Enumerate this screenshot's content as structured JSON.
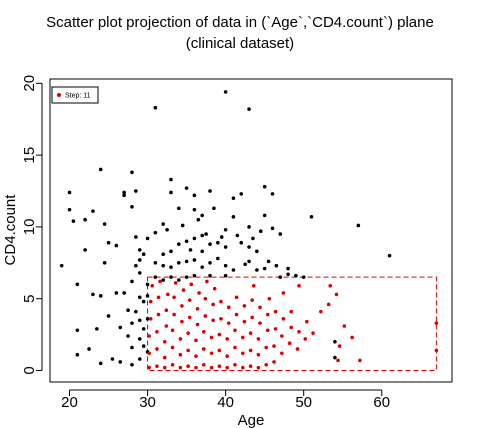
{
  "chart_data": {
    "type": "scatter",
    "title": "Scatter plot projection of data in (`Age`,`CD4.count`) plane",
    "subtitle": "(clinical dataset)",
    "xlabel": "Age",
    "ylabel": "CD4.count",
    "xlim": [
      17.5,
      69
    ],
    "ylim": [
      -0.8,
      20.3
    ],
    "xticks": [
      20,
      30,
      40,
      50,
      60
    ],
    "yticks": [
      0,
      5,
      10,
      15,
      20
    ],
    "legend_position": "top-left",
    "highlight_box": {
      "x": [
        30,
        67
      ],
      "y": [
        0,
        6.5
      ]
    },
    "series": [
      {
        "name": "",
        "color": "#000000",
        "points": [
          [
            19,
            7.3
          ],
          [
            20,
            12.4
          ],
          [
            20,
            11.2
          ],
          [
            20.5,
            10.4
          ],
          [
            21,
            6
          ],
          [
            21,
            2.8
          ],
          [
            21,
            1.1
          ],
          [
            22,
            10.5
          ],
          [
            22,
            8.4
          ],
          [
            22.5,
            1.5
          ],
          [
            23,
            11.1
          ],
          [
            23,
            5.3
          ],
          [
            23.5,
            2.9
          ],
          [
            24,
            14
          ],
          [
            24,
            5.2
          ],
          [
            24,
            0.5
          ],
          [
            24.5,
            7.5
          ],
          [
            24.5,
            10.2
          ],
          [
            25,
            8.9
          ],
          [
            25,
            3.8
          ],
          [
            25.5,
            0.8
          ],
          [
            26,
            8.7
          ],
          [
            26,
            5.4
          ],
          [
            26.5,
            3
          ],
          [
            26.5,
            0.6
          ],
          [
            27,
            12.4
          ],
          [
            27,
            12.2
          ],
          [
            27,
            5.4
          ],
          [
            27.5,
            4.2
          ],
          [
            27.5,
            2.4
          ],
          [
            28,
            13.8
          ],
          [
            28,
            11.4
          ],
          [
            28,
            6.2
          ],
          [
            28,
            3.3
          ],
          [
            28,
            1.6
          ],
          [
            28,
            0.4
          ],
          [
            28.5,
            7.3
          ],
          [
            28.5,
            12.5
          ],
          [
            28.5,
            9.3
          ],
          [
            28.5,
            4.1
          ],
          [
            29,
            8.4
          ],
          [
            29,
            6.8
          ],
          [
            29,
            5.1
          ],
          [
            29,
            3.5
          ],
          [
            29,
            2.2
          ],
          [
            29,
            0.8
          ],
          [
            29,
            7.7
          ],
          [
            29.5,
            8.1
          ],
          [
            29.5,
            4.8
          ],
          [
            29.5,
            2.9
          ],
          [
            29.5,
            1.7
          ],
          [
            30,
            6
          ],
          [
            30,
            5.2
          ],
          [
            30,
            3.6
          ],
          [
            30,
            1.3
          ],
          [
            30,
            9.2
          ],
          [
            31,
            18.3
          ],
          [
            31,
            9.6
          ],
          [
            31,
            7.5
          ],
          [
            31,
            6.5
          ],
          [
            32,
            10.2
          ],
          [
            32,
            8.1
          ],
          [
            32,
            7.3
          ],
          [
            32,
            6.3
          ],
          [
            32.5,
            9.8
          ],
          [
            33,
            13.3
          ],
          [
            33,
            12.4
          ],
          [
            33,
            8.3
          ],
          [
            33,
            7.2
          ],
          [
            33,
            6.5
          ],
          [
            34,
            11.3
          ],
          [
            34,
            8.8
          ],
          [
            34,
            7.5
          ],
          [
            34,
            6.3
          ],
          [
            34.5,
            10.1
          ],
          [
            35,
            12.7
          ],
          [
            35,
            9
          ],
          [
            35,
            7.6
          ],
          [
            35,
            6.5
          ],
          [
            35.5,
            8.4
          ],
          [
            36,
            12.2
          ],
          [
            36,
            11.2
          ],
          [
            36,
            9.2
          ],
          [
            36,
            7.7
          ],
          [
            36,
            6.6
          ],
          [
            36.5,
            10.5
          ],
          [
            37,
            10.8
          ],
          [
            37,
            9.4
          ],
          [
            37,
            8.3
          ],
          [
            37,
            7.2
          ],
          [
            37.5,
            9.5
          ],
          [
            38,
            12.5
          ],
          [
            38,
            8.8
          ],
          [
            38,
            7.5
          ],
          [
            38,
            6.6
          ],
          [
            38.5,
            11.3
          ],
          [
            39,
            8.9
          ],
          [
            39,
            7.8
          ],
          [
            39.5,
            9.3
          ],
          [
            40,
            19.4
          ],
          [
            40,
            9.8
          ],
          [
            40,
            8.6
          ],
          [
            40,
            7.3
          ],
          [
            40,
            6.6
          ],
          [
            41,
            12
          ],
          [
            41,
            10.7
          ],
          [
            41,
            7
          ],
          [
            41.5,
            9.4
          ],
          [
            42,
            12.3
          ],
          [
            42,
            8.9
          ],
          [
            42.5,
            7.4
          ],
          [
            43,
            18.2
          ],
          [
            43,
            10
          ],
          [
            43,
            8.6
          ],
          [
            43,
            7.6
          ],
          [
            43.5,
            9.2
          ],
          [
            44,
            8.3
          ],
          [
            44,
            7
          ],
          [
            44.5,
            9.7
          ],
          [
            45,
            12.8
          ],
          [
            45,
            10.8
          ],
          [
            45,
            7.1
          ],
          [
            45.5,
            7.6
          ],
          [
            46,
            9.9
          ],
          [
            46,
            12.3
          ],
          [
            46.5,
            7.3
          ],
          [
            47,
            9.5
          ],
          [
            47,
            6.5
          ],
          [
            48,
            7.1
          ],
          [
            48,
            6.7
          ],
          [
            49,
            6.6
          ],
          [
            50,
            6.5
          ],
          [
            51,
            10.7
          ],
          [
            54,
            2
          ],
          [
            54,
            0.9
          ],
          [
            57,
            10.1
          ],
          [
            61,
            8
          ]
        ]
      },
      {
        "name": "Step: 11",
        "color": "#dd0000",
        "points": [
          [
            30.2,
            0.2
          ],
          [
            30.2,
            1.2
          ],
          [
            30.2,
            2.4
          ],
          [
            30.4,
            3.6
          ],
          [
            30.4,
            4.8
          ],
          [
            30.6,
            5.9
          ],
          [
            31.2,
            0.3
          ],
          [
            31.2,
            1.5
          ],
          [
            31.2,
            2.7
          ],
          [
            31.4,
            3.9
          ],
          [
            31.4,
            5.1
          ],
          [
            31.6,
            6.2
          ],
          [
            32.2,
            0.2
          ],
          [
            32.2,
            0.9
          ],
          [
            32.2,
            2
          ],
          [
            32.4,
            3.1
          ],
          [
            32.4,
            4.2
          ],
          [
            32.6,
            5.3
          ],
          [
            33.2,
            0.4
          ],
          [
            33.2,
            1.6
          ],
          [
            33.2,
            2.8
          ],
          [
            33.4,
            3.9
          ],
          [
            33.4,
            5.1
          ],
          [
            33.6,
            6.1
          ],
          [
            34.2,
            0.2
          ],
          [
            34.2,
            1.1
          ],
          [
            34.2,
            2.2
          ],
          [
            34.4,
            3.4
          ],
          [
            34.4,
            4.5
          ],
          [
            34.6,
            5.6
          ],
          [
            35.2,
            0.3
          ],
          [
            35.2,
            1.4
          ],
          [
            35.2,
            2.6
          ],
          [
            35.4,
            3.7
          ],
          [
            35.4,
            4.9
          ],
          [
            35.6,
            6
          ],
          [
            36.2,
            0.2
          ],
          [
            36.2,
            1
          ],
          [
            36.2,
            2.1
          ],
          [
            36.4,
            3.2
          ],
          [
            36.4,
            4.3
          ],
          [
            36.6,
            5.4
          ],
          [
            37.2,
            0.4
          ],
          [
            37.2,
            1.5
          ],
          [
            37.2,
            2.7
          ],
          [
            37.4,
            3.8
          ],
          [
            37.4,
            5
          ],
          [
            37.6,
            6.2
          ],
          [
            38.2,
            0.2
          ],
          [
            38.2,
            1.2
          ],
          [
            38.2,
            2.3
          ],
          [
            38.4,
            3.5
          ],
          [
            38.4,
            4.6
          ],
          [
            38.6,
            5.7
          ],
          [
            39.2,
            0.3
          ],
          [
            39.2,
            1.4
          ],
          [
            39.2,
            2.5
          ],
          [
            39.4,
            3.6
          ],
          [
            39.4,
            4.8
          ],
          [
            40.2,
            0.2
          ],
          [
            40.2,
            1
          ],
          [
            40.2,
            2.2
          ],
          [
            40.4,
            3.3
          ],
          [
            40.4,
            4.4
          ],
          [
            41.2,
            0.4
          ],
          [
            41.2,
            1.6
          ],
          [
            41.2,
            2.8
          ],
          [
            41.4,
            3.9
          ],
          [
            41.4,
            5.1
          ],
          [
            42.2,
            0.2
          ],
          [
            42.2,
            1.2
          ],
          [
            42.2,
            2.3
          ],
          [
            42.4,
            3.4
          ],
          [
            42.4,
            4.5
          ],
          [
            43.2,
            0.3
          ],
          [
            43.2,
            1.4
          ],
          [
            43.2,
            2.6
          ],
          [
            43.4,
            3.7
          ],
          [
            43.4,
            4.9
          ],
          [
            43.6,
            5.9
          ],
          [
            44.2,
            0.2
          ],
          [
            44.2,
            1.1
          ],
          [
            44.2,
            2.2
          ],
          [
            44.4,
            3.3
          ],
          [
            44.4,
            4.4
          ],
          [
            45.2,
            0.4
          ],
          [
            45.2,
            1.6
          ],
          [
            45.4,
            2.8
          ],
          [
            45.4,
            3.9
          ],
          [
            45.6,
            5
          ],
          [
            46.2,
            0.6
          ],
          [
            46.2,
            1.7
          ],
          [
            46.4,
            2.9
          ],
          [
            46.4,
            4.1
          ],
          [
            47.2,
            1.2
          ],
          [
            47.2,
            2.4
          ],
          [
            47.4,
            3.6
          ],
          [
            47.4,
            5.4
          ],
          [
            48.2,
            1.9
          ],
          [
            48.4,
            3
          ],
          [
            48.4,
            4.1
          ],
          [
            49.2,
            1.5
          ],
          [
            49.4,
            2.7
          ],
          [
            49.4,
            5.9
          ],
          [
            50.2,
            2.2
          ],
          [
            50.4,
            3.4
          ],
          [
            51.2,
            2.6
          ],
          [
            52.2,
            4.1
          ],
          [
            53.2,
            4.6
          ],
          [
            53.4,
            5.9
          ],
          [
            54.2,
            5.3
          ],
          [
            54.4,
            0.7
          ],
          [
            54.6,
            1.7
          ],
          [
            55.2,
            3.1
          ],
          [
            56.2,
            2.3
          ],
          [
            57.2,
            0.7
          ],
          [
            67,
            3.3
          ],
          [
            67,
            1.4
          ]
        ]
      }
    ]
  }
}
